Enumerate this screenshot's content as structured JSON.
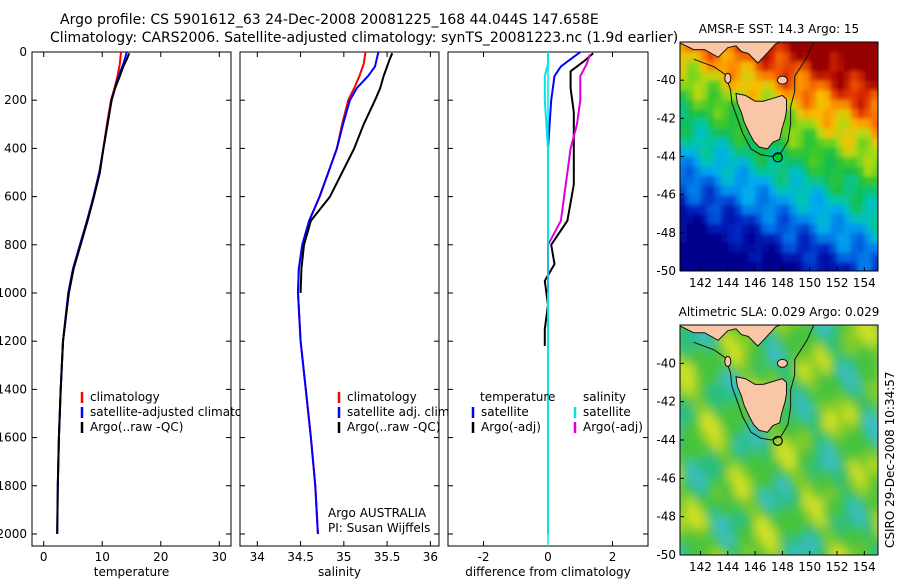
{
  "header": {
    "line1": "Argo profile: CS 5901612_63 24-Dec-2008 20081225_168 44.044S 147.658E",
    "line2": "Climatology: CARS2006. Satellite-adjusted climatology: synTS_20081223.nc (1.9d earlier)"
  },
  "side_label": "CSIRO 29-Dec-2008 10:34:57",
  "colors": {
    "climatology": "#ff0000",
    "satellite": "#0000ff",
    "argo": "#000000",
    "sal_satellite": "#00e5e5",
    "sal_argo": "#dd00dd",
    "land": "#f9c7a6",
    "marker": "#00cc00"
  },
  "chart_data": [
    {
      "type": "line",
      "name": "temperature-profile",
      "xlabel": "temperature",
      "ylabel": "",
      "xlim": [
        -2,
        32
      ],
      "ylim": [
        2050,
        0
      ],
      "xticks": [
        0,
        10,
        20,
        30
      ],
      "yticks": [
        0,
        200,
        400,
        600,
        800,
        1000,
        1200,
        1400,
        1600,
        1800,
        2000
      ],
      "legend": {
        "placement": "lower-right",
        "entries": [
          "climatology",
          "satellite-adjusted climatology",
          "Argo(..raw -QC)"
        ]
      },
      "series": [
        {
          "name": "climatology",
          "color": "#ff0000",
          "depth": [
            0,
            50,
            100,
            150,
            200,
            300,
            400,
            500,
            600,
            700,
            800,
            900,
            1000,
            1200,
            1400,
            1600,
            1800
          ],
          "values": [
            13.2,
            13.0,
            12.6,
            12.1,
            11.5,
            10.8,
            10.2,
            9.5,
            8.5,
            7.4,
            6.2,
            5.0,
            4.2,
            3.3,
            2.9,
            2.6,
            2.4
          ]
        },
        {
          "name": "satellite-adjusted climatology",
          "color": "#0000ff",
          "depth": [
            0,
            50,
            100,
            150,
            200,
            300,
            400,
            500,
            600,
            700,
            800,
            900,
            1000,
            1200,
            1400,
            1600,
            1800,
            2000
          ],
          "values": [
            14.2,
            13.6,
            12.8,
            12.2,
            11.6,
            10.9,
            10.2,
            9.5,
            8.5,
            7.4,
            6.2,
            5.0,
            4.2,
            3.3,
            2.9,
            2.6,
            2.4,
            2.3
          ]
        },
        {
          "name": "Argo(..raw -QC)",
          "color": "#000000",
          "depth": [
            5,
            30,
            60,
            100,
            150,
            200,
            300,
            400,
            500,
            600,
            700,
            800,
            900,
            1000,
            1200,
            1400,
            1600,
            1800,
            2000
          ],
          "values": [
            14.6,
            14.2,
            13.6,
            13.0,
            12.2,
            11.6,
            10.9,
            10.2,
            9.6,
            8.6,
            7.5,
            6.3,
            5.1,
            4.3,
            3.3,
            2.9,
            2.6,
            2.4,
            2.3
          ]
        }
      ]
    },
    {
      "type": "line",
      "name": "salinity-profile",
      "xlabel": "salinity",
      "ylabel": "",
      "xlim": [
        33.8,
        36.1
      ],
      "ylim": [
        2050,
        0
      ],
      "xticks": [
        34,
        34.5,
        35,
        35.5,
        36
      ],
      "legend": {
        "placement": "lower-right",
        "entries": [
          "climatology",
          "satellite adj. clim.",
          "Argo(..raw -QC)"
        ]
      },
      "annotation": [
        "Argo AUSTRALIA",
        "PI: Susan Wijffels"
      ],
      "series": [
        {
          "name": "climatology",
          "color": "#ff0000",
          "depth": [
            0,
            50,
            100,
            150,
            200,
            300,
            400,
            500,
            600,
            700,
            800,
            900,
            1000,
            1200,
            1400,
            1600,
            1800,
            2000
          ],
          "values": [
            35.25,
            35.23,
            35.18,
            35.12,
            35.05,
            34.98,
            34.92,
            34.82,
            34.72,
            34.6,
            34.52,
            34.48,
            34.47,
            34.5,
            34.56,
            34.62,
            34.67,
            34.7
          ]
        },
        {
          "name": "satellite adj. clim.",
          "color": "#0000ff",
          "depth": [
            0,
            30,
            60,
            100,
            150,
            200,
            300,
            400,
            500,
            600,
            700,
            800,
            900,
            1000,
            1200,
            1400,
            1600,
            1800,
            2000
          ],
          "values": [
            35.4,
            35.38,
            35.36,
            35.28,
            35.15,
            35.07,
            34.99,
            34.92,
            34.82,
            34.72,
            34.6,
            34.52,
            34.48,
            34.47,
            34.5,
            34.56,
            34.62,
            34.67,
            34.7
          ]
        },
        {
          "name": "Argo(..raw -QC)",
          "color": "#000000",
          "depth": [
            5,
            30,
            60,
            100,
            150,
            200,
            300,
            400,
            500,
            600,
            700,
            800,
            900,
            1000
          ],
          "values": [
            35.56,
            35.53,
            35.5,
            35.46,
            35.42,
            35.36,
            35.23,
            35.12,
            34.98,
            34.84,
            34.62,
            34.54,
            34.51,
            34.5
          ]
        }
      ]
    },
    {
      "type": "line",
      "name": "difference-profile",
      "xlabel": "difference from climatology",
      "ylabel": "",
      "xlim": [
        -3.1,
        3.1
      ],
      "ylim": [
        2050,
        0
      ],
      "xticks": [
        -2,
        0,
        2
      ],
      "legend": {
        "placement": "lower-center",
        "columns": [
          {
            "heading": "temperature",
            "entries": [
              "satellite",
              "Argo(-adj)"
            ]
          },
          {
            "heading": "salinity",
            "entries": [
              "satellite",
              "Argo(-adj)"
            ]
          }
        ]
      },
      "series": [
        {
          "name": "temperature satellite",
          "color": "#0000ff",
          "depth": [
            0,
            30,
            60,
            100,
            200,
            400,
            800,
            1200,
            1600,
            2000
          ],
          "values": [
            1.0,
            0.7,
            0.4,
            0.2,
            0.1,
            0.0,
            0.0,
            0.0,
            0.0,
            0.0
          ]
        },
        {
          "name": "temperature Argo(-adj)",
          "color": "#000000",
          "depth": [
            5,
            40,
            80,
            150,
            250,
            400,
            550,
            700,
            800,
            880,
            950,
            1050,
            1150,
            1220
          ],
          "values": [
            1.4,
            1.1,
            0.7,
            0.7,
            0.8,
            0.8,
            0.8,
            0.6,
            0.1,
            0.2,
            -0.1,
            0.0,
            -0.1,
            -0.1
          ]
        },
        {
          "name": "salinity satellite",
          "color": "#00e5e5",
          "depth": [
            0,
            50,
            100,
            200,
            400,
            800,
            1200,
            1600,
            2000
          ],
          "values": [
            0.0,
            0.0,
            -0.1,
            -0.1,
            0.0,
            0.0,
            0.0,
            0.0,
            0.0
          ]
        },
        {
          "name": "salinity Argo(-adj)",
          "color": "#dd00dd",
          "depth": [
            10,
            50,
            100,
            150,
            200,
            300,
            400,
            500,
            600,
            700,
            800,
            900,
            1000
          ],
          "values": [
            1.3,
            1.2,
            1.0,
            1.0,
            1.0,
            0.9,
            0.7,
            0.6,
            0.5,
            0.4,
            0.0,
            0.0,
            0.0
          ]
        }
      ]
    },
    {
      "type": "heatmap",
      "name": "sst-map",
      "title": "AMSR-E SST: 14.3 Argo: 15",
      "xlim": [
        140.5,
        155
      ],
      "ylim": [
        -50,
        -38
      ],
      "xticks": [
        142,
        144,
        146,
        148,
        150,
        152,
        154
      ],
      "yticks": [
        -40,
        -42,
        -44,
        -46,
        -48,
        -50
      ],
      "argo_position": {
        "lon": 147.658,
        "lat": -44.044
      }
    },
    {
      "type": "heatmap",
      "name": "sla-map",
      "title": "Altimetric SLA: 0.029 Argo: 0.029",
      "xlim": [
        140.5,
        155
      ],
      "ylim": [
        -50,
        -38
      ],
      "xticks": [
        142,
        144,
        146,
        148,
        150,
        152,
        154
      ],
      "yticks": [
        -40,
        -42,
        -44,
        -46,
        -48,
        -50
      ],
      "argo_position": {
        "lon": 147.658,
        "lat": -44.044
      }
    }
  ]
}
